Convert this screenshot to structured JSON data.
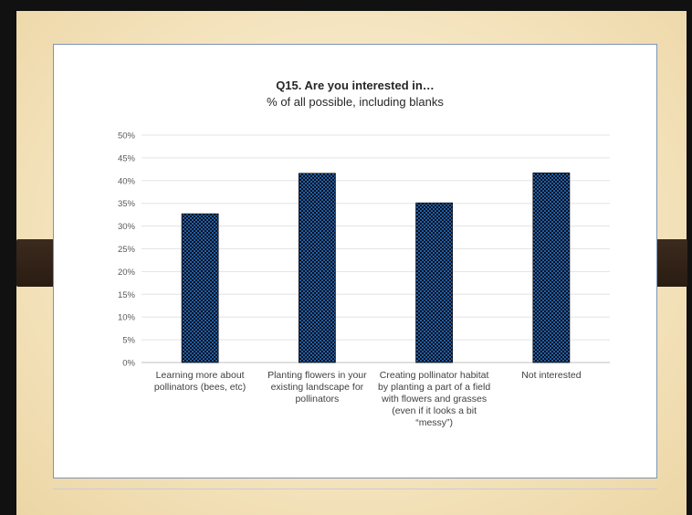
{
  "chart_data": {
    "type": "bar",
    "title": "Q15. Are you interested in…",
    "subtitle": "% of all possible, including blanks",
    "xlabel": "",
    "ylabel": "",
    "categories": [
      "Learning more about pollinators (bees, etc)",
      "Planting flowers in your existing landscape for pollinators",
      "Creating pollinator habitat by planting a part of a field with flowers and grasses (even if it looks a bit “messy”)",
      "Not interested"
    ],
    "values": [
      32.7,
      41.6,
      35.1,
      41.7
    ],
    "ylim": [
      0,
      50
    ],
    "y_ticks": [
      "0%",
      "5%",
      "10%",
      "15%",
      "20%",
      "25%",
      "30%",
      "35%",
      "40%",
      "45%",
      "50%"
    ],
    "grid": true,
    "legend": "none",
    "bar_fill": "#1f5fa8",
    "bar_pattern_color": "#0b0f1a"
  }
}
